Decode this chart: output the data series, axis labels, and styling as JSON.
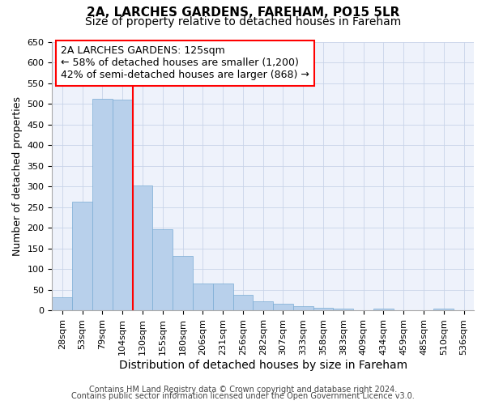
{
  "title": "2A, LARCHES GARDENS, FAREHAM, PO15 5LR",
  "subtitle": "Size of property relative to detached houses in Fareham",
  "xlabel": "Distribution of detached houses by size in Fareham",
  "ylabel": "Number of detached properties",
  "categories": [
    "28sqm",
    "53sqm",
    "79sqm",
    "104sqm",
    "130sqm",
    "155sqm",
    "180sqm",
    "206sqm",
    "231sqm",
    "256sqm",
    "282sqm",
    "307sqm",
    "333sqm",
    "358sqm",
    "383sqm",
    "409sqm",
    "434sqm",
    "459sqm",
    "485sqm",
    "510sqm",
    "536sqm"
  ],
  "values": [
    32,
    262,
    512,
    510,
    302,
    196,
    132,
    65,
    65,
    38,
    22,
    15,
    10,
    7,
    5,
    1,
    5,
    1,
    1,
    5,
    0
  ],
  "bar_color": "#b8d0eb",
  "bar_edge_color": "#7aacd4",
  "vline_x_index": 4,
  "vline_color": "red",
  "annotation_text": "2A LARCHES GARDENS: 125sqm\n← 58% of detached houses are smaller (1,200)\n42% of semi-detached houses are larger (868) →",
  "annotation_box_color": "red",
  "annotation_bg": "white",
  "ylim": [
    0,
    650
  ],
  "yticks": [
    0,
    50,
    100,
    150,
    200,
    250,
    300,
    350,
    400,
    450,
    500,
    550,
    600,
    650
  ],
  "grid_color": "#c8d4e8",
  "footnote1": "Contains HM Land Registry data © Crown copyright and database right 2024.",
  "footnote2": "Contains public sector information licensed under the Open Government Licence v3.0.",
  "title_fontsize": 11,
  "subtitle_fontsize": 10,
  "xlabel_fontsize": 10,
  "ylabel_fontsize": 9,
  "tick_fontsize": 8,
  "annot_fontsize": 9,
  "footnote_fontsize": 7,
  "bg_color": "#eef2fb"
}
